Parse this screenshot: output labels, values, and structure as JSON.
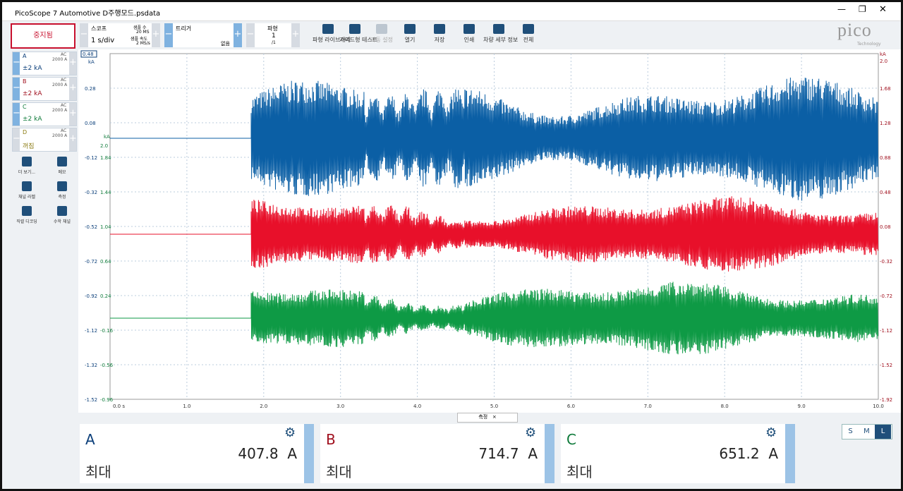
{
  "window": {
    "title": "PicoScope 7 Automotive D주행모드.psdata"
  },
  "toolbar": {
    "stop": "중지됨",
    "scope": {
      "label": "스코프",
      "timebase": "1 s/div",
      "samples_label": "샘플 수",
      "samples": "20 MS",
      "rate_label": "샘플 속도",
      "rate": "2 MS/s"
    },
    "trigger": {
      "label": "트리거",
      "mode": "없음"
    },
    "waveform": {
      "label": "파형",
      "index": "1",
      "count": "/1"
    },
    "buttons": [
      "파형 라이브러리",
      "가이드형 테스트",
      "자동 설정",
      "열기",
      "저장",
      "인쇄",
      "차량 세부 정보",
      "전체"
    ]
  },
  "brand": {
    "logo": "pico",
    "sub": "Technology"
  },
  "channels": [
    {
      "name": "A",
      "coupling": "AC",
      "detail": "2000 A",
      "range": "±2 kA"
    },
    {
      "name": "B",
      "coupling": "AC",
      "detail": "2000 A",
      "range": "±2 kA"
    },
    {
      "name": "C",
      "coupling": "AC",
      "detail": "2000 A",
      "range": "±2 kA"
    },
    {
      "name": "D",
      "coupling": "AC",
      "detail": "2000 A",
      "range": "꺼짐"
    }
  ],
  "tools": [
    "더 보기...",
    "메모",
    "채널 라벨",
    "측정",
    "직렬 디코딩",
    "수학 채널"
  ],
  "plot": {
    "left_axis": {
      "top": "0.48",
      "unit": "kA",
      "labels": [
        "0.28",
        "0.08",
        "-0.12",
        "-0.32",
        "-0.52",
        "-0.72",
        "-0.92",
        "-1.12",
        "-1.32",
        "-1.52"
      ]
    },
    "mid_axis": {
      "unit": "kA",
      "labels": [
        "2.0",
        "1.84",
        "1.44",
        "1.04",
        "0.64",
        "0.24",
        "-0.16",
        "-0.56",
        "-0.96"
      ]
    },
    "right_axis": {
      "unit": "kA",
      "labels": [
        "2.0",
        "1.68",
        "1.28",
        "0.88",
        "0.48",
        "0.08",
        "-0.32",
        "-0.72",
        "-1.12",
        "-1.52",
        "-1.92"
      ]
    },
    "x_labels": [
      "0.0 s",
      "1.0",
      "2.0",
      "3.0",
      "4.0",
      "5.0",
      "6.0",
      "7.0",
      "8.0",
      "9.0",
      "10.0"
    ]
  },
  "measurements": {
    "tab": "측정",
    "cards": [
      {
        "channel": "A",
        "value": "407.8  A",
        "stat": "최대"
      },
      {
        "channel": "B",
        "value": "714.7  A",
        "stat": "최대"
      },
      {
        "channel": "C",
        "value": "651.2  A",
        "stat": "최대"
      }
    ]
  },
  "size_buttons": [
    "S",
    "M",
    "L"
  ]
}
